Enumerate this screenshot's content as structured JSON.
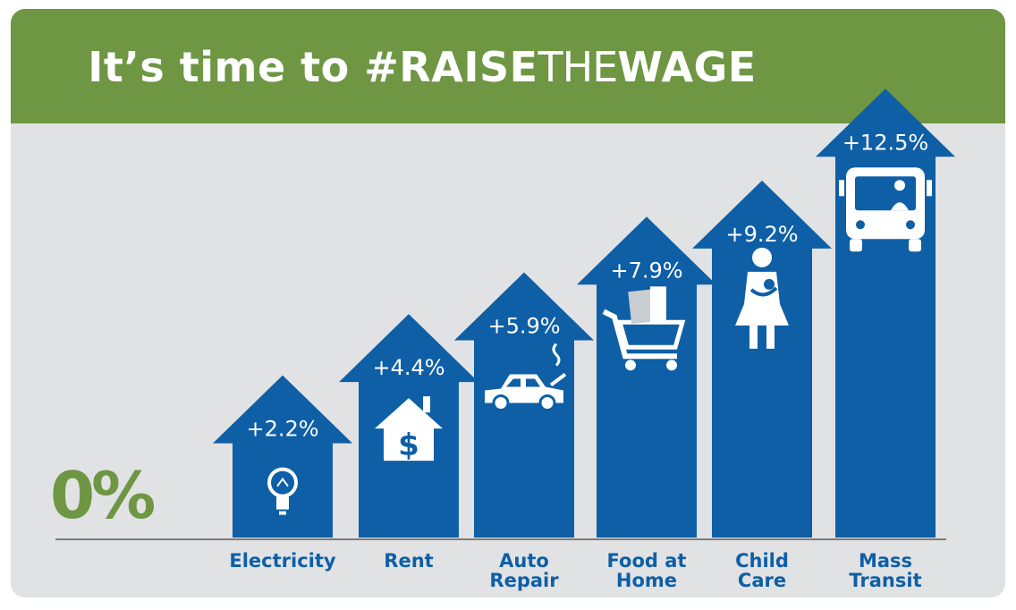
{
  "header": {
    "title_part1": "It’s time to ",
    "title_part2": "#RAISE",
    "title_part3": "THE",
    "title_part4": "WAGE"
  },
  "baseline_label": "0%",
  "colors": {
    "banner": "#6e9643",
    "arrow": "#0e5fa6",
    "background": "#e1e2e4",
    "zero": "#6e9643"
  },
  "chart_data": {
    "type": "bar",
    "categories": [
      "Electricity",
      "Rent",
      "Auto Repair",
      "Food at Home",
      "Child Care",
      "Mass Transit"
    ],
    "category_lines": [
      [
        "Electricity"
      ],
      [
        "Rent"
      ],
      [
        "Auto",
        "Repair"
      ],
      [
        "Food at",
        "Home"
      ],
      [
        "Child",
        "Care"
      ],
      [
        "Mass",
        "Transit"
      ]
    ],
    "values": [
      2.2,
      4.4,
      5.9,
      7.9,
      9.2,
      12.5
    ],
    "data_labels": [
      "+2.2%",
      "+4.4%",
      "+5.9%",
      "+7.9%",
      "+9.2%",
      "+12.5%"
    ],
    "icons": [
      "lightbulb-icon",
      "house-dollar-icon",
      "car-broken-icon",
      "grocery-cart-icon",
      "parent-child-icon",
      "bus-icon"
    ],
    "baseline": "0%"
  }
}
